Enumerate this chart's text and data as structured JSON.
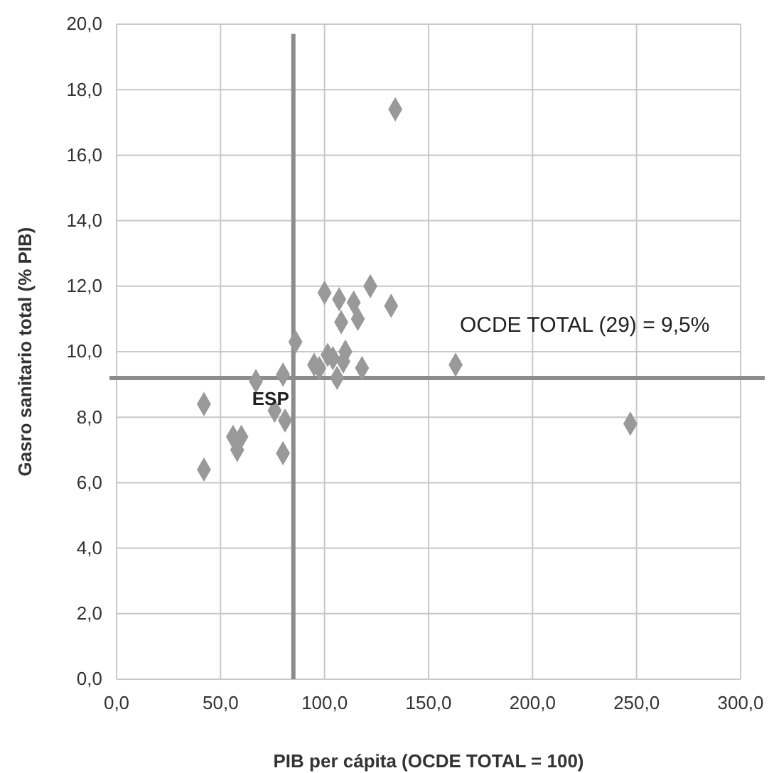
{
  "chart_data": {
    "type": "scatter",
    "xlabel": "PIB per cápita (OCDE TOTAL = 100)",
    "ylabel": "Gasro sanitario total (% PIB)",
    "x": [
      134,
      122,
      100,
      107,
      114,
      132,
      108,
      116,
      86,
      110,
      163,
      95,
      97.5,
      101.5,
      104,
      109,
      118,
      106,
      67,
      80,
      42,
      247,
      76,
      81,
      56,
      60,
      58,
      80,
      42
    ],
    "values": [
      17.4,
      12.0,
      11.8,
      11.6,
      11.5,
      11.4,
      10.9,
      11.0,
      10.3,
      10.0,
      9.6,
      9.6,
      9.5,
      9.9,
      9.8,
      9.7,
      9.5,
      9.2,
      9.1,
      9.3,
      8.4,
      7.8,
      8.2,
      7.9,
      7.4,
      7.4,
      7.0,
      6.9,
      6.4
    ],
    "color": "#999999",
    "marker": "diamond",
    "grid": true,
    "xlim": [
      0,
      300
    ],
    "xticks": [
      {
        "value": 0,
        "label": "0,0"
      },
      {
        "value": 50,
        "label": "50,0"
      },
      {
        "value": 100,
        "label": "100,0"
      },
      {
        "value": 150,
        "label": "150,0"
      },
      {
        "value": 200,
        "label": "200,0"
      },
      {
        "value": 250,
        "label": "250,0"
      },
      {
        "value": 300,
        "label": "300,0"
      }
    ],
    "ylim": [
      0,
      20
    ],
    "yticks": [
      {
        "value": 0,
        "label": "0,0"
      },
      {
        "value": 2,
        "label": "2,0"
      },
      {
        "value": 4,
        "label": "4,0"
      },
      {
        "value": 6,
        "label": "6,0"
      },
      {
        "value": 8,
        "label": "8,0"
      },
      {
        "value": 10,
        "label": "10,0"
      },
      {
        "value": 12,
        "label": "12,0"
      },
      {
        "value": 14,
        "label": "14,0"
      },
      {
        "value": 16,
        "label": "16,0"
      },
      {
        "value": 18,
        "label": "18,0"
      },
      {
        "value": 20,
        "label": "20,0"
      }
    ],
    "ref_lines": [
      {
        "axis": "x",
        "value": 85,
        "color": "#8c8c8c"
      },
      {
        "axis": "y",
        "value": 9.2,
        "color": "#8c8c8c"
      }
    ],
    "annotations": [
      {
        "text": "ESP",
        "x": 85,
        "y": 9.2
      },
      "OCDE TOTAL (29) = 9,5%"
    ]
  }
}
